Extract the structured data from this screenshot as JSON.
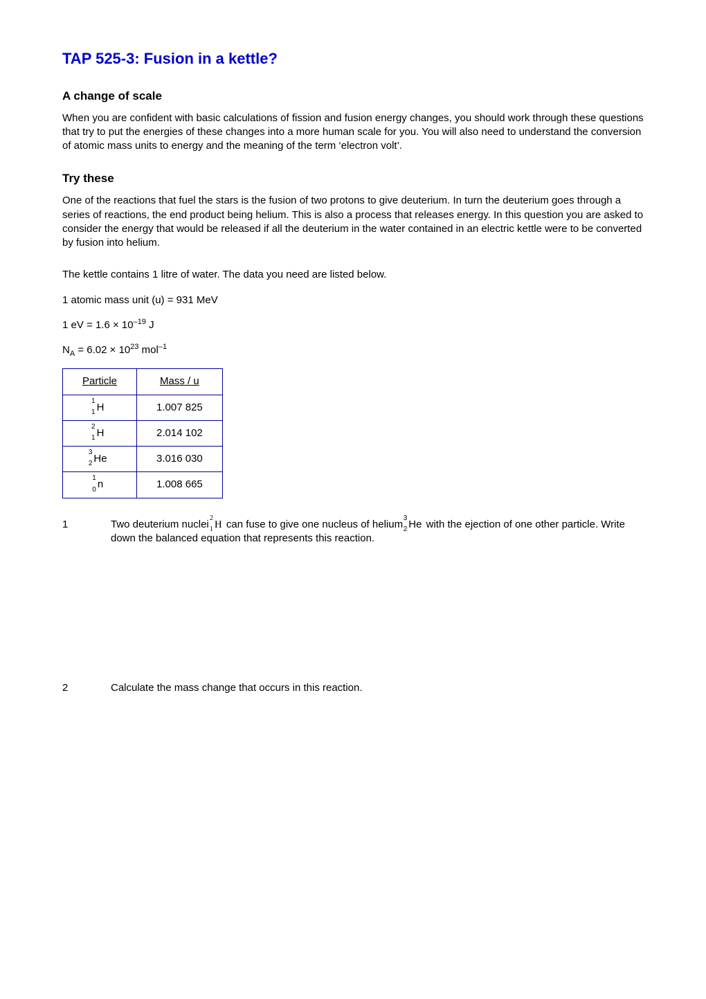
{
  "title": "TAP 525-3: Fusion in a kettle?",
  "title_color": "#0000cc",
  "section1": {
    "heading": "A change of scale",
    "para": "When you are confident with basic calculations of fission and fusion energy changes, you should work through these questions that try to put the energies of these changes into a more human scale for you. You will also need to understand the conversion of atomic mass units to energy and the meaning of the term ‘electron volt’."
  },
  "section2": {
    "heading": "Try these",
    "para1": "One of the reactions that fuel the stars is the fusion of two protons to give deuterium. In turn the deuterium goes through a series of reactions, the end product being helium. This is also a process that releases energy. In this question you are asked to consider the energy that would be released if all the deuterium in the water contained in an electric kettle were to be converted by fusion into helium.",
    "para2": "The kettle contains 1 litre of water. The data you need are listed below.",
    "line_amu_pre": "1 atomic mass unit (u) = ",
    "line_amu_val": "931 MeV",
    "line_ev_pre": "1 eV = 1.6 ",
    "line_ev_mid": "× 10",
    "line_ev_exp": "–19",
    "line_ev_suf": " J",
    "line_na_pre": "N",
    "line_na_sub": "A",
    "line_na_mid": " = 6.02 × 10",
    "line_na_exp": "23",
    "line_na_suf": " mol",
    "line_na_exp2": "–1"
  },
  "table": {
    "border_color": "#000099",
    "header_particle": "Particle",
    "header_mass": "Mass / u",
    "rows": [
      {
        "A": "1",
        "Z": "1",
        "sym": "H",
        "mass": "1.007 825"
      },
      {
        "A": "2",
        "Z": "1",
        "sym": "H",
        "mass": "2.014 102"
      },
      {
        "A": "3",
        "Z": "2",
        "sym": "He",
        "mass": "3.016 030"
      },
      {
        "A": "1",
        "Z": "0",
        "sym": "n",
        "mass": "1.008 665"
      }
    ]
  },
  "q1": {
    "num": "1",
    "t1": "Two deuterium nuclei ",
    "iso1_A": "2",
    "iso1_Z": "1",
    "iso1_sym": "H",
    "t2": " can fuse to give one nucleus of helium ",
    "iso2_A": "3",
    "iso2_Z": "2",
    "iso2_sym": "He",
    "t3": " with the ejection of one other particle. Write down the balanced equation that represents this reaction."
  },
  "q2": {
    "num": "2",
    "text": "Calculate the mass change that occurs in this reaction."
  }
}
